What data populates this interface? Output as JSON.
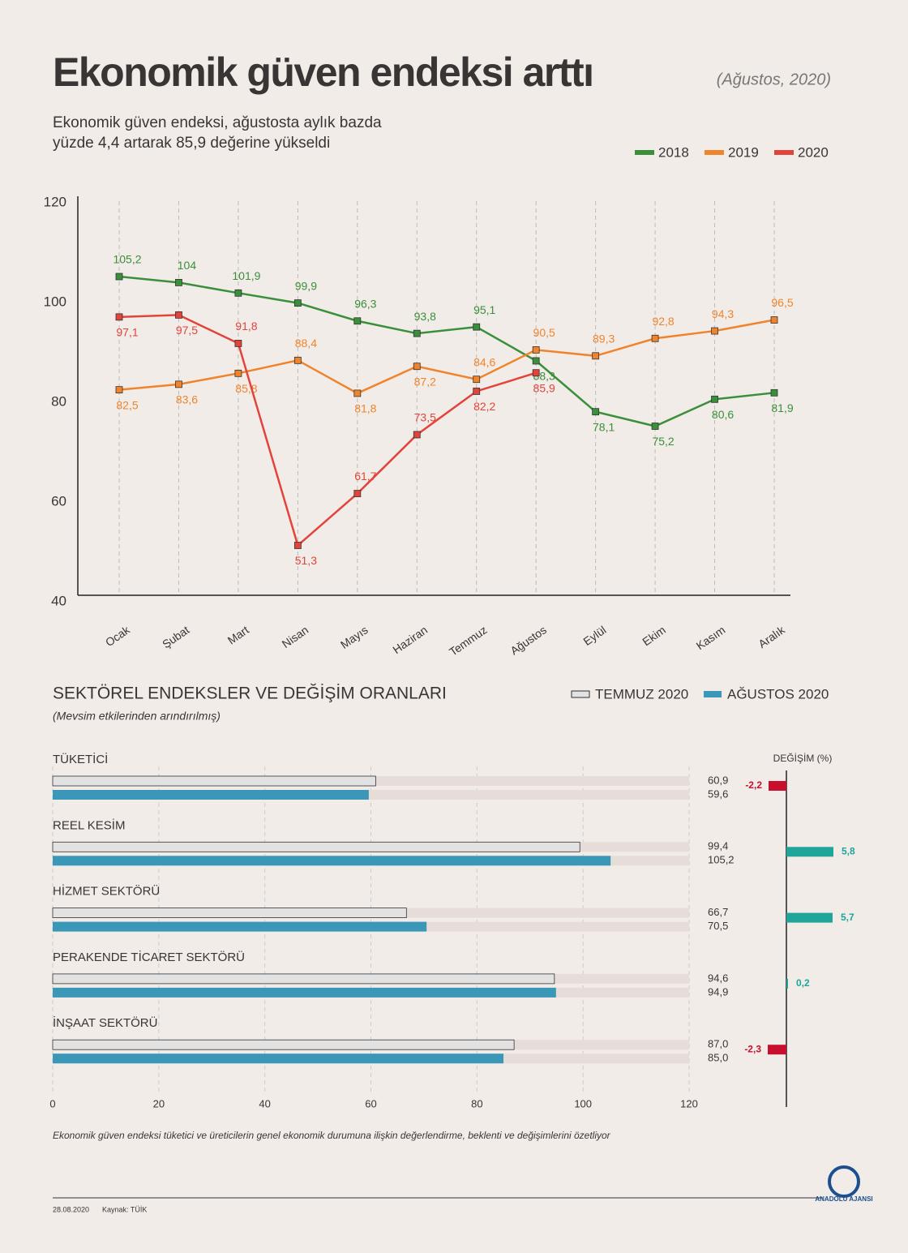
{
  "header": {
    "title": "Ekonomik güven endeksi arttı",
    "date": "(Ağustos, 2020)",
    "subtitle": [
      "Ekonomik güven endeksi, ağustosta aylık bazda",
      "yüzde 4,4 artarak 85,9 değerine yükseldi"
    ]
  },
  "chart_data": [
    {
      "type": "line",
      "categories": [
        "Ocak",
        "Şubat",
        "Mart",
        "Nisan",
        "Mayıs",
        "Haziran",
        "Temmuz",
        "Ağustos",
        "Eylül",
        "Ekim",
        "Kasım",
        "Aralık"
      ],
      "ylim": [
        40,
        120
      ],
      "yticks": [
        40,
        60,
        80,
        100,
        120
      ],
      "series": [
        {
          "name": "2018",
          "color": "#3a8f3a",
          "values": [
            105.2,
            104,
            101.9,
            99.9,
            96.3,
            93.8,
            95.1,
            88.3,
            78.1,
            75.2,
            80.6,
            81.9
          ],
          "value_labels": [
            "105,2",
            "104",
            "101,9",
            "99,9",
            "96,3",
            "93,8",
            "95,1",
            "88,3",
            "78,1",
            "75,2",
            "80,6",
            "81,9"
          ]
        },
        {
          "name": "2019",
          "color": "#f0842c",
          "values": [
            82.5,
            83.6,
            85.8,
            88.4,
            81.8,
            87.2,
            84.6,
            90.5,
            89.3,
            92.8,
            94.3,
            96.5
          ],
          "value_labels": [
            "82,5",
            "83,6",
            "85,8",
            "88,4",
            "81,8",
            "87,2",
            "84,6",
            "90,5",
            "89,3",
            "92,8",
            "94,3",
            "96,5"
          ]
        },
        {
          "name": "2020",
          "color": "#e2443b",
          "values": [
            97.1,
            97.5,
            91.8,
            51.3,
            61.7,
            73.5,
            82.2,
            85.9,
            null,
            null,
            null,
            null
          ],
          "value_labels": [
            "97,1",
            "97,5",
            "91,8",
            "51,3",
            "61,7",
            "73,5",
            "82,2",
            "85,9",
            null,
            null,
            null,
            null
          ]
        }
      ]
    },
    {
      "type": "hbar",
      "title": "SEKTÖREL ENDEKSLER VE DEĞİŞİM ORANLARI",
      "subtitle": "(Mevsim etkilerinden arındırılmış)",
      "categories": [
        "TÜKETİCİ",
        "REEL KESİM",
        "HİZMET SEKTÖRÜ",
        "PERAKENDE TİCARET SEKTÖRÜ",
        "İNŞAAT SEKTÖRÜ"
      ],
      "xlim": [
        0,
        120
      ],
      "xticks": [
        0,
        20,
        40,
        60,
        80,
        100,
        120
      ],
      "series": [
        {
          "name": "TEMMUZ 2020",
          "color": "#e2e2e2",
          "values": [
            60.9,
            99.4,
            66.7,
            94.6,
            87.0
          ],
          "value_labels": [
            "60,9",
            "99,4",
            "66,7",
            "94,6",
            "87,0"
          ]
        },
        {
          "name": "AĞUSTOS 2020",
          "color": "#3b97b8",
          "values": [
            59.6,
            105.2,
            70.5,
            94.9,
            85.0
          ],
          "value_labels": [
            "59,6",
            "105,2",
            "70,5",
            "94,9",
            "85,0"
          ]
        }
      ],
      "change": {
        "title": "DEĞİŞİM (%)",
        "values": [
          -2.2,
          5.8,
          5.7,
          0.2,
          -2.3
        ],
        "value_labels": [
          "-2,2",
          "5,8",
          "5,7",
          "0,2",
          "-2,3"
        ],
        "negative_color": "#c8102e",
        "positive_color": "#1fa59a"
      }
    }
  ],
  "footer": {
    "note": "Ekonomik güven endeksi tüketici ve üreticilerin genel ekonomik durumuna ilişkin değerlendirme, beklenti ve değişimlerini özetliyor",
    "date": "28.08.2020",
    "source": "Kaynak: TÜİK",
    "logo": "ANADOLU AJANSI"
  }
}
